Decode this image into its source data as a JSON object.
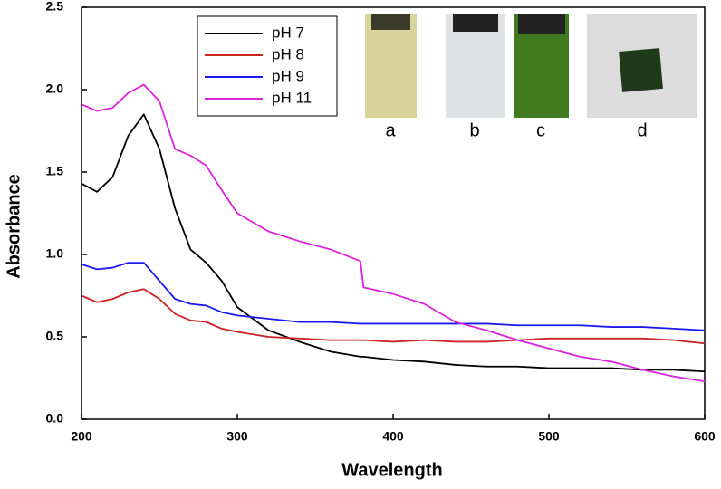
{
  "chart_data": {
    "type": "line",
    "xlabel": "Wavelength",
    "ylabel": "Absorbance",
    "x": [
      200,
      210,
      220,
      230,
      240,
      250,
      260,
      270,
      280,
      290,
      300,
      320,
      340,
      360,
      379,
      381,
      400,
      420,
      440,
      460,
      480,
      500,
      520,
      540,
      560,
      580,
      600
    ],
    "series": [
      {
        "name": "pH 7",
        "color": "#000000",
        "values": [
          1.43,
          1.38,
          1.47,
          1.72,
          1.85,
          1.64,
          1.28,
          1.03,
          0.95,
          0.84,
          0.68,
          0.54,
          0.47,
          0.41,
          0.38,
          0.38,
          0.36,
          0.35,
          0.33,
          0.32,
          0.32,
          0.31,
          0.31,
          0.31,
          0.3,
          0.3,
          0.29
        ]
      },
      {
        "name": "pH 8",
        "color": "#cc2222",
        "values": [
          0.75,
          0.71,
          0.73,
          0.77,
          0.79,
          0.73,
          0.64,
          0.6,
          0.59,
          0.55,
          0.53,
          0.5,
          0.49,
          0.48,
          0.48,
          0.48,
          0.47,
          0.48,
          0.47,
          0.47,
          0.48,
          0.49,
          0.49,
          0.49,
          0.49,
          0.48,
          0.46
        ]
      },
      {
        "name": "pH 9",
        "color": "#1a1aee",
        "values": [
          0.94,
          0.91,
          0.92,
          0.95,
          0.95,
          0.84,
          0.73,
          0.7,
          0.69,
          0.65,
          0.63,
          0.61,
          0.59,
          0.59,
          0.58,
          0.58,
          0.58,
          0.58,
          0.58,
          0.58,
          0.57,
          0.57,
          0.57,
          0.56,
          0.56,
          0.55,
          0.54
        ]
      },
      {
        "name": "pH 11",
        "color": "#dd22dd",
        "values": [
          1.91,
          1.87,
          1.89,
          1.98,
          2.03,
          1.93,
          1.64,
          1.6,
          1.54,
          1.39,
          1.25,
          1.14,
          1.08,
          1.03,
          0.96,
          0.8,
          0.76,
          0.7,
          0.59,
          0.54,
          0.48,
          0.43,
          0.38,
          0.35,
          0.3,
          0.26,
          0.23
        ]
      }
    ],
    "xlim": [
      200,
      600
    ],
    "xticks": [
      200,
      300,
      400,
      500,
      600
    ],
    "ylim": [
      0,
      2.5
    ],
    "yticks": [
      {
        "value": 0,
        "label": "0.0"
      },
      0.5,
      {
        "value": 1,
        "label": "1.0"
      },
      1.5,
      {
        "value": 2,
        "label": "2.0"
      },
      2.5
    ],
    "grid": false,
    "legend": "upper left",
    "inset_labels": [
      "a",
      "b",
      "c",
      "d"
    ]
  }
}
